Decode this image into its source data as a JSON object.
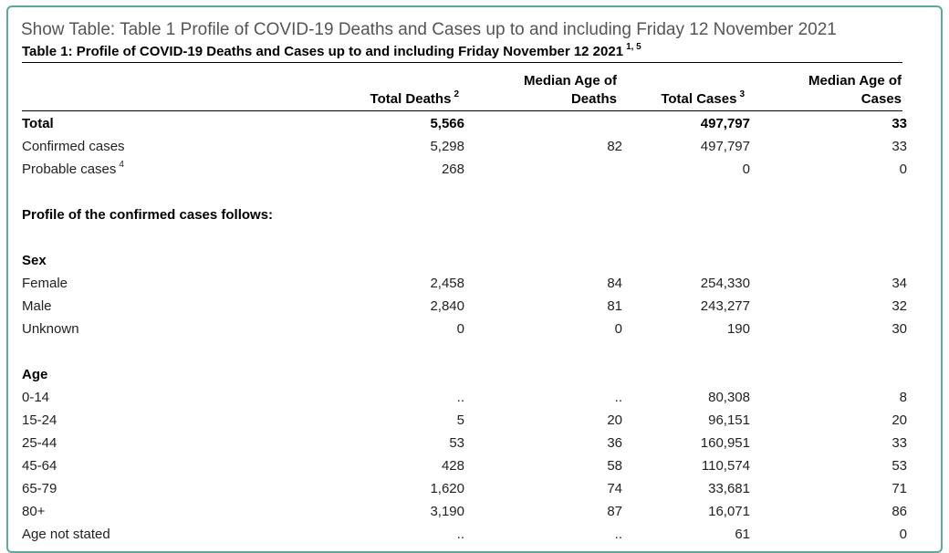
{
  "show_table_title": "Show Table: Table 1 Profile of COVID-19 Deaths and Cases up to and including Friday 12 November 2021",
  "caption": {
    "text": "Table 1: Profile of COVID-19 Deaths and Cases up to and including Friday November 12 2021",
    "footnote": "1, 5"
  },
  "headers": {
    "total_deaths": "Total Deaths",
    "total_deaths_note": "2",
    "median_age_deaths_line1": "Median Age of",
    "median_age_deaths_line2": "Deaths",
    "total_cases": "Total Cases",
    "total_cases_note": "3",
    "median_age_cases_line1": "Median Age of",
    "median_age_cases_line2": "Cases"
  },
  "rows": [
    {
      "label": "Total",
      "note": "",
      "total_deaths": "5,566",
      "median_age_deaths": "",
      "total_cases": "497,797",
      "median_age_cases": "33",
      "bold": true
    },
    {
      "label": "Confirmed cases",
      "note": "",
      "total_deaths": "5,298",
      "median_age_deaths": "82",
      "total_cases": "497,797",
      "median_age_cases": "33"
    },
    {
      "label": "Probable cases",
      "note": "4",
      "total_deaths": "268",
      "median_age_deaths": "",
      "total_cases": "0",
      "median_age_cases": "0"
    },
    {
      "blank": true
    },
    {
      "label": "Profile of the confirmed cases follows:",
      "section": true
    },
    {
      "blank": true
    },
    {
      "label": "Sex",
      "section": true
    },
    {
      "label": "Female",
      "note": "",
      "total_deaths": "2,458",
      "median_age_deaths": "84",
      "total_cases": "254,330",
      "median_age_cases": "34"
    },
    {
      "label": "Male",
      "note": "",
      "total_deaths": "2,840",
      "median_age_deaths": "81",
      "total_cases": "243,277",
      "median_age_cases": "32"
    },
    {
      "label": "Unknown",
      "note": "",
      "total_deaths": "0",
      "median_age_deaths": "0",
      "total_cases": "190",
      "median_age_cases": "30"
    },
    {
      "blank": true
    },
    {
      "label": "Age",
      "section": true
    },
    {
      "label": "0-14",
      "note": "",
      "total_deaths": "..",
      "median_age_deaths": "..",
      "total_cases": "80,308",
      "median_age_cases": "8"
    },
    {
      "label": "15-24",
      "note": "",
      "total_deaths": "5",
      "median_age_deaths": "20",
      "total_cases": "96,151",
      "median_age_cases": "20"
    },
    {
      "label": "25-44",
      "note": "",
      "total_deaths": "53",
      "median_age_deaths": "36",
      "total_cases": "160,951",
      "median_age_cases": "33"
    },
    {
      "label": "45-64",
      "note": "",
      "total_deaths": "428",
      "median_age_deaths": "58",
      "total_cases": "110,574",
      "median_age_cases": "53"
    },
    {
      "label": "65-79",
      "note": "",
      "total_deaths": "1,620",
      "median_age_deaths": "74",
      "total_cases": "33,681",
      "median_age_cases": "71"
    },
    {
      "label": "80+",
      "note": "",
      "total_deaths": "3,190",
      "median_age_deaths": "87",
      "total_cases": "16,071",
      "median_age_cases": "86"
    },
    {
      "label": "Age not stated",
      "note": "",
      "total_deaths": "..",
      "median_age_deaths": "..",
      "total_cases": "61",
      "median_age_cases": "0"
    }
  ],
  "colors": {
    "panel_border": "#5fa79a",
    "show_title": "#555555"
  }
}
